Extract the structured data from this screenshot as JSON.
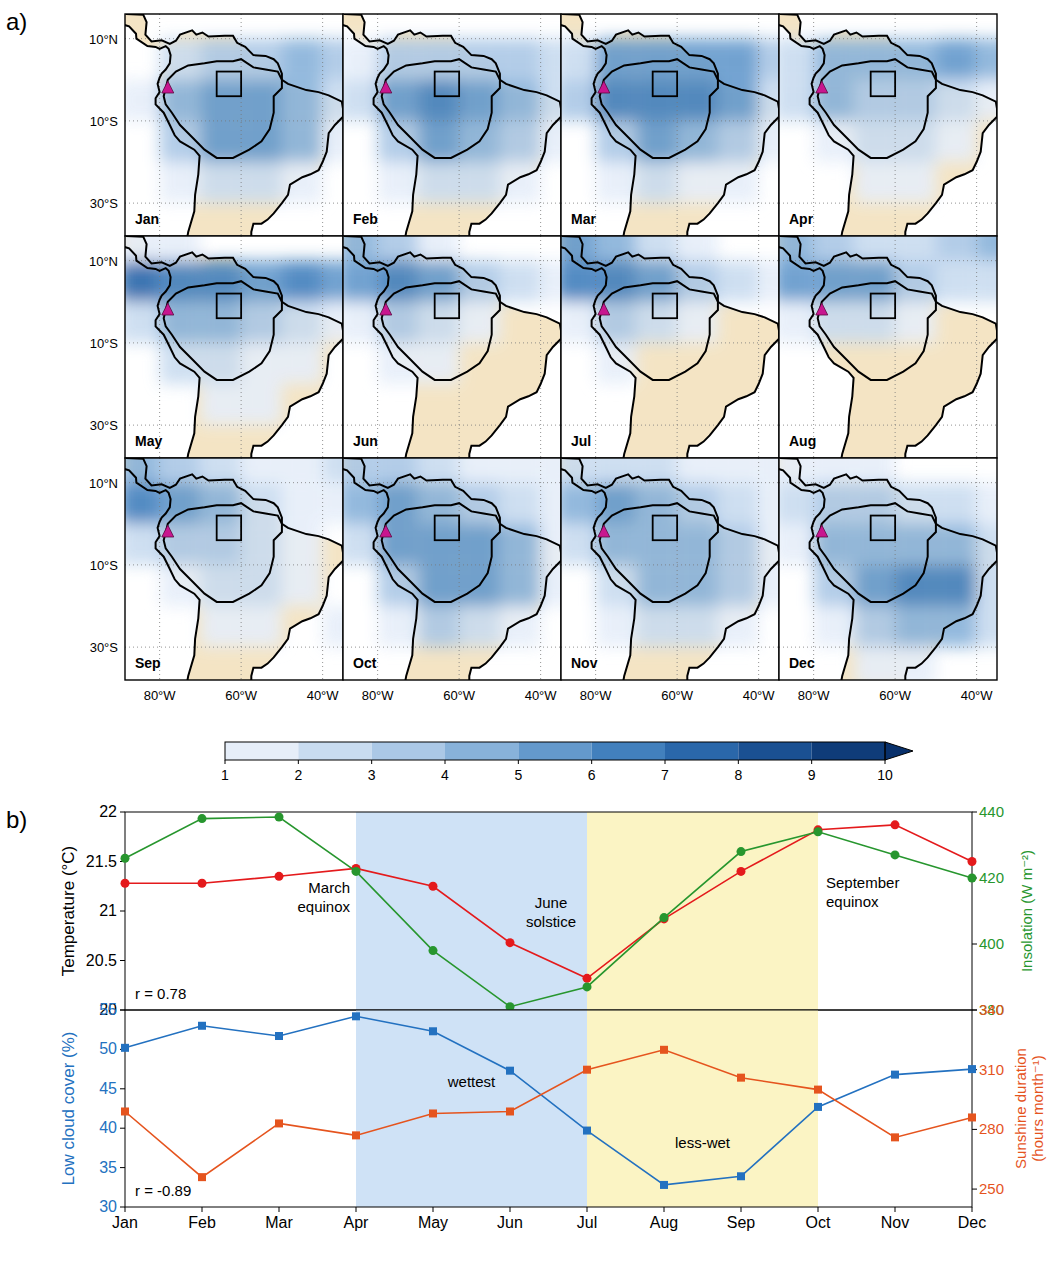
{
  "chart_data": [
    {
      "type": "heatmap",
      "panel_label": "a)",
      "xlim": [
        -88.5,
        -35
      ],
      "ylim": [
        -38,
        16
      ],
      "xticks": [
        {
          "value": -80,
          "label": "80°W"
        },
        {
          "value": -60,
          "label": "60°W"
        },
        {
          "value": -40,
          "label": "40°W"
        }
      ],
      "yticks": [
        {
          "value": 10,
          "label": "10°N"
        },
        {
          "value": -10,
          "label": "10°S"
        },
        {
          "value": -30,
          "label": "30°S"
        }
      ],
      "grid": true,
      "lon": [
        -85,
        -75,
        -65,
        -55,
        -45,
        -35
      ],
      "lat": [
        15,
        5,
        -5,
        -15,
        -25,
        -35
      ],
      "region_box": {
        "lon": [
          -66,
          -60
        ],
        "lat": [
          -4,
          2
        ]
      },
      "site": {
        "lon": -78,
        "lat": -2
      },
      "color_bar": {
        "range": [
          1,
          10
        ],
        "ticks": [
          1,
          2,
          3,
          4,
          5,
          6,
          7,
          8,
          9,
          10
        ]
      },
      "panels": [
        {
          "title": "Jan",
          "cells": [
            [
              0,
              0,
              0,
              0,
              0,
              0
            ],
            [
              0,
              2,
              3,
              3,
              4,
              3
            ],
            [
              1,
              4,
              5,
              5,
              4,
              2
            ],
            [
              0,
              3,
              5,
              5,
              4,
              1
            ],
            [
              0,
              1,
              2,
              2,
              1,
              0
            ],
            [
              0,
              0,
              0,
              0,
              0,
              0
            ]
          ]
        },
        {
          "title": "Feb",
          "cells": [
            [
              0,
              0,
              0,
              0,
              0,
              0
            ],
            [
              1,
              3,
              3,
              3,
              3,
              2
            ],
            [
              2,
              5,
              6,
              5,
              4,
              2
            ],
            [
              0,
              3,
              5,
              4,
              3,
              1
            ],
            [
              0,
              1,
              2,
              2,
              1,
              0
            ],
            [
              0,
              0,
              0,
              0,
              0,
              0
            ]
          ]
        },
        {
          "title": "Mar",
          "cells": [
            [
              0,
              0,
              0,
              0,
              0,
              0
            ],
            [
              2,
              5,
              5,
              5,
              5,
              3
            ],
            [
              3,
              6,
              6,
              6,
              5,
              2
            ],
            [
              0,
              3,
              5,
              4,
              3,
              1
            ],
            [
              0,
              1,
              2,
              1,
              1,
              0
            ],
            [
              0,
              0,
              0,
              0,
              0,
              0
            ]
          ]
        },
        {
          "title": "Apr",
          "cells": [
            [
              0,
              0,
              0,
              0,
              0,
              0
            ],
            [
              2,
              4,
              4,
              4,
              5,
              4
            ],
            [
              2,
              4,
              3,
              3,
              2,
              1
            ],
            [
              0,
              1,
              2,
              2,
              1,
              0
            ],
            [
              0,
              0,
              1,
              1,
              0,
              0
            ],
            [
              0,
              0,
              0,
              0,
              0,
              0
            ]
          ]
        },
        {
          "title": "May",
          "cells": [
            [
              1,
              1,
              0,
              0,
              0,
              0
            ],
            [
              7,
              6,
              6,
              5,
              6,
              5
            ],
            [
              2,
              4,
              4,
              3,
              2,
              1
            ],
            [
              0,
              2,
              2,
              1,
              1,
              0
            ],
            [
              0,
              0,
              1,
              1,
              0,
              0
            ],
            [
              0,
              0,
              0,
              0,
              0,
              0
            ]
          ]
        },
        {
          "title": "Jun",
          "cells": [
            [
              4,
              3,
              1,
              0,
              0,
              0
            ],
            [
              5,
              6,
              5,
              3,
              2,
              1
            ],
            [
              1,
              3,
              2,
              1,
              0,
              0
            ],
            [
              0,
              1,
              1,
              0,
              0,
              0
            ],
            [
              0,
              0,
              0,
              0,
              0,
              0
            ],
            [
              0,
              0,
              0,
              0,
              0,
              0
            ]
          ]
        },
        {
          "title": "Jul",
          "cells": [
            [
              5,
              4,
              2,
              1,
              0,
              0
            ],
            [
              6,
              6,
              5,
              3,
              2,
              1
            ],
            [
              1,
              3,
              2,
              1,
              0,
              0
            ],
            [
              0,
              1,
              0,
              0,
              0,
              0
            ],
            [
              0,
              0,
              0,
              0,
              0,
              0
            ],
            [
              0,
              0,
              0,
              0,
              0,
              0
            ]
          ]
        },
        {
          "title": "Aug",
          "cells": [
            [
              4,
              3,
              2,
              2,
              3,
              4
            ],
            [
              5,
              5,
              5,
              3,
              2,
              2
            ],
            [
              1,
              2,
              2,
              1,
              0,
              0
            ],
            [
              0,
              0,
              0,
              0,
              0,
              0
            ],
            [
              0,
              0,
              0,
              0,
              0,
              0
            ],
            [
              0,
              0,
              0,
              0,
              0,
              0
            ]
          ]
        },
        {
          "title": "Sep",
          "cells": [
            [
              4,
              3,
              2,
              1,
              1,
              2
            ],
            [
              6,
              5,
              4,
              2,
              1,
              1
            ],
            [
              2,
              3,
              3,
              2,
              1,
              0
            ],
            [
              0,
              1,
              2,
              2,
              1,
              0
            ],
            [
              0,
              0,
              1,
              1,
              0,
              1
            ],
            [
              0,
              0,
              0,
              0,
              0,
              0
            ]
          ]
        },
        {
          "title": "Oct",
          "cells": [
            [
              3,
              3,
              2,
              1,
              1,
              1
            ],
            [
              4,
              5,
              4,
              3,
              2,
              1
            ],
            [
              2,
              5,
              5,
              5,
              4,
              1
            ],
            [
              0,
              3,
              5,
              5,
              4,
              1
            ],
            [
              0,
              1,
              3,
              2,
              1,
              0
            ],
            [
              0,
              0,
              0,
              0,
              0,
              0
            ]
          ]
        },
        {
          "title": "Nov",
          "cells": [
            [
              2,
              2,
              2,
              1,
              1,
              1
            ],
            [
              4,
              5,
              4,
              3,
              2,
              1
            ],
            [
              2,
              4,
              4,
              4,
              3,
              1
            ],
            [
              0,
              2,
              4,
              4,
              3,
              1
            ],
            [
              0,
              1,
              2,
              2,
              1,
              0
            ],
            [
              0,
              0,
              0,
              0,
              0,
              0
            ]
          ]
        },
        {
          "title": "Dec",
          "cells": [
            [
              1,
              1,
              1,
              0,
              0,
              0
            ],
            [
              2,
              3,
              3,
              2,
              2,
              1
            ],
            [
              1,
              4,
              4,
              4,
              4,
              2
            ],
            [
              0,
              3,
              5,
              6,
              6,
              2
            ],
            [
              0,
              1,
              3,
              4,
              4,
              2
            ],
            [
              0,
              0,
              1,
              1,
              0,
              0
            ]
          ]
        }
      ]
    },
    {
      "type": "line",
      "panel_label": "b)",
      "categories": [
        "Jan",
        "Feb",
        "Mar",
        "Apr",
        "May",
        "Jun",
        "Jul",
        "Aug",
        "Sep",
        "Oct",
        "Nov",
        "Dec"
      ],
      "tick_labels": "y",
      "ylabel": "Temperature (°C)",
      "y2label": "Insolation (W m⁻²)",
      "ylim": [
        20,
        22
      ],
      "yticks": [
        20,
        20.5,
        21,
        21.5,
        22
      ],
      "y2lim": [
        380,
        440
      ],
      "y2ticks": [
        380,
        400,
        420,
        440
      ],
      "bands": [
        {
          "from": "Apr",
          "to": "Jul",
          "color": "#cfe2f6"
        },
        {
          "from": "Jul",
          "to": "Oct",
          "color": "#fbf4c4"
        }
      ],
      "series": [
        {
          "color": "#e41a1c",
          "marker": "circle",
          "line_style": "solid",
          "values": [
            21.28,
            21.28,
            21.35,
            21.43,
            21.25,
            20.68,
            20.32,
            20.92,
            21.4,
            21.82,
            21.87,
            21.5
          ]
        },
        {
          "color": "#27962e",
          "marker": "circle",
          "line_style": "solid",
          "axis": "y2",
          "values": [
            426,
            438,
            438.5,
            422,
            398,
            381,
            387,
            408,
            428,
            434,
            427,
            420
          ]
        }
      ],
      "annotations": [
        {
          "text": "March equinox",
          "x": "Apr"
        },
        {
          "text": "June solstice",
          "x": "Jul"
        },
        {
          "text": "September equinox",
          "x": "Oct"
        },
        {
          "text": "r = 0.78"
        }
      ]
    },
    {
      "type": "line",
      "categories": [
        "Jan",
        "Feb",
        "Mar",
        "Apr",
        "May",
        "Jun",
        "Jul",
        "Aug",
        "Sep",
        "Oct",
        "Nov",
        "Dec"
      ],
      "ylabel": "Low cloud cover (%)",
      "y2label": "Sunshine duration (hours month⁻¹)",
      "ylim": [
        30,
        55
      ],
      "yticks": [
        30,
        35,
        40,
        45,
        50,
        55
      ],
      "y2lim": [
        241,
        340
      ],
      "y2ticks": [
        250,
        280,
        310,
        340
      ],
      "bands": [
        {
          "from": "Apr",
          "to": "Jul",
          "color": "#cfe2f6",
          "label": "wettest"
        },
        {
          "from": "Jul",
          "to": "Oct",
          "color": "#fbf4c4",
          "label": "less-wet"
        }
      ],
      "series": [
        {
          "color": "#2371c0",
          "marker": "square",
          "line_style": "solid",
          "values": [
            50.2,
            53,
            51.7,
            54.2,
            52.3,
            47.3,
            39.7,
            32.8,
            33.9,
            42.7,
            46.8,
            47.5
          ]
        },
        {
          "color": "#e5541e",
          "marker": "square",
          "line_style": "solid",
          "axis": "y2",
          "values": [
            289,
            256,
            283,
            277,
            288,
            289,
            310,
            320,
            306,
            300,
            276,
            286
          ]
        }
      ],
      "annotations": [
        {
          "text": "r = -0.89"
        }
      ]
    }
  ]
}
